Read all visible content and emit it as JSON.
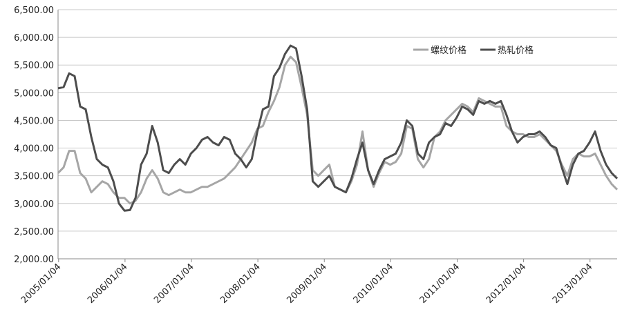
{
  "chart_data": {
    "type": "line",
    "xlim": [
      "2005/01",
      "2013/06"
    ],
    "xticks": [
      "2005/01/04",
      "2006/01/04",
      "2007/01/04",
      "2008/01/04",
      "2009/01/04",
      "2010/01/04",
      "2011/01/04",
      "2012/01/04",
      "2013/01/04"
    ],
    "ylim": [
      2000,
      6500
    ],
    "yticks": [
      {
        "value": 2000,
        "label": "2,000.00"
      },
      {
        "value": 2500,
        "label": "2,500.00"
      },
      {
        "value": 3000,
        "label": "3,000.00"
      },
      {
        "value": 3500,
        "label": "3,500.00"
      },
      {
        "value": 4000,
        "label": "4,000.00"
      },
      {
        "value": 4500,
        "label": "4,500.00"
      },
      {
        "value": 5000,
        "label": "5,000.00"
      },
      {
        "value": 5500,
        "label": "5,500.00"
      },
      {
        "value": 6000,
        "label": "6,000.00"
      },
      {
        "value": 6500,
        "label": "6,500.00"
      }
    ],
    "grid": true,
    "legend": "top-right",
    "x": [
      "2005/01",
      "2005/02",
      "2005/03",
      "2005/04",
      "2005/05",
      "2005/06",
      "2005/07",
      "2005/08",
      "2005/09",
      "2005/10",
      "2005/11",
      "2005/12",
      "2006/01",
      "2006/02",
      "2006/03",
      "2006/04",
      "2006/05",
      "2006/06",
      "2006/07",
      "2006/08",
      "2006/09",
      "2006/10",
      "2006/11",
      "2006/12",
      "2007/01",
      "2007/02",
      "2007/03",
      "2007/04",
      "2007/05",
      "2007/06",
      "2007/07",
      "2007/08",
      "2007/09",
      "2007/10",
      "2007/11",
      "2007/12",
      "2008/01",
      "2008/02",
      "2008/03",
      "2008/04",
      "2008/05",
      "2008/06",
      "2008/07",
      "2008/08",
      "2008/09",
      "2008/10",
      "2008/11",
      "2008/12",
      "2009/01",
      "2009/02",
      "2009/03",
      "2009/04",
      "2009/05",
      "2009/06",
      "2009/07",
      "2009/08",
      "2009/09",
      "2009/10",
      "2009/11",
      "2009/12",
      "2010/01",
      "2010/02",
      "2010/03",
      "2010/04",
      "2010/05",
      "2010/06",
      "2010/07",
      "2010/08",
      "2010/09",
      "2010/10",
      "2010/11",
      "2010/12",
      "2011/01",
      "2011/02",
      "2011/03",
      "2011/04",
      "2011/05",
      "2011/06",
      "2011/07",
      "2011/08",
      "2011/09",
      "2011/10",
      "2011/11",
      "2011/12",
      "2012/01",
      "2012/02",
      "2012/03",
      "2012/04",
      "2012/05",
      "2012/06",
      "2012/07",
      "2012/08",
      "2012/09",
      "2012/10",
      "2012/11",
      "2012/12",
      "2013/01",
      "2013/02",
      "2013/03",
      "2013/04",
      "2013/05",
      "2013/06"
    ],
    "series": [
      {
        "name": "螺纹价格",
        "color": "#a6a6a6",
        "values": [
          3550,
          3650,
          3950,
          3950,
          3550,
          3450,
          3200,
          3300,
          3400,
          3350,
          3200,
          3100,
          3100,
          3000,
          3050,
          3200,
          3450,
          3600,
          3450,
          3200,
          3150,
          3200,
          3250,
          3200,
          3200,
          3250,
          3300,
          3300,
          3350,
          3400,
          3450,
          3550,
          3650,
          3800,
          3950,
          4100,
          4350,
          4400,
          4650,
          4850,
          5100,
          5500,
          5650,
          5550,
          5100,
          4600,
          3600,
          3500,
          3600,
          3700,
          3300,
          3250,
          3200,
          3400,
          3700,
          4300,
          3600,
          3300,
          3550,
          3750,
          3700,
          3750,
          3900,
          4400,
          4350,
          3800,
          3650,
          3800,
          4200,
          4300,
          4500,
          4600,
          4700,
          4800,
          4750,
          4650,
          4900,
          4850,
          4800,
          4750,
          4750,
          4400,
          4300,
          4250,
          4250,
          4200,
          4200,
          4250,
          4150,
          4050,
          3950,
          3700,
          3500,
          3800,
          3900,
          3850,
          3850,
          3900,
          3700,
          3500,
          3350,
          3250
        ]
      },
      {
        "name": "热轧价格",
        "color": "#4d4d4d",
        "values": [
          5080,
          5100,
          5350,
          5300,
          4750,
          4700,
          4200,
          3800,
          3700,
          3650,
          3400,
          3000,
          2870,
          2880,
          3100,
          3700,
          3900,
          4400,
          4100,
          3600,
          3550,
          3700,
          3800,
          3700,
          3900,
          4000,
          4150,
          4200,
          4100,
          4050,
          4200,
          4150,
          3900,
          3800,
          3650,
          3800,
          4300,
          4700,
          4750,
          5300,
          5450,
          5700,
          5850,
          5800,
          5300,
          4700,
          3400,
          3300,
          3400,
          3500,
          3300,
          3250,
          3200,
          3450,
          3800,
          4100,
          3600,
          3350,
          3600,
          3800,
          3850,
          3900,
          4100,
          4500,
          4400,
          3900,
          3800,
          4100,
          4200,
          4250,
          4450,
          4400,
          4550,
          4750,
          4700,
          4600,
          4850,
          4800,
          4850,
          4800,
          4850,
          4600,
          4300,
          4100,
          4200,
          4250,
          4250,
          4300,
          4200,
          4050,
          4000,
          3650,
          3350,
          3700,
          3900,
          3950,
          4100,
          4300,
          3950,
          3700,
          3550,
          3450
        ]
      }
    ]
  }
}
